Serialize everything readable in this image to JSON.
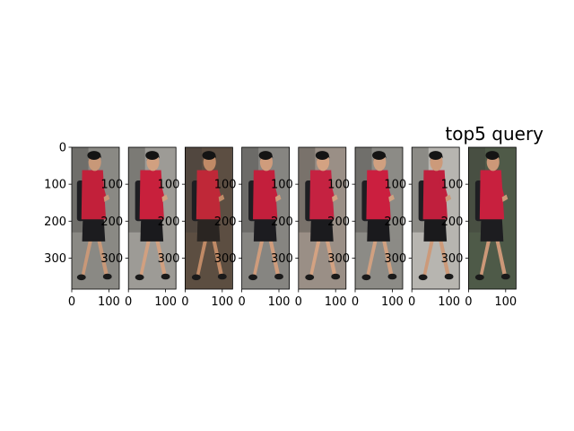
{
  "chart_data": {
    "type": "image_grid",
    "title": "top5 query",
    "panels": [
      {
        "xticks": [
          0,
          100
        ],
        "yticks": [
          0,
          100,
          200,
          300
        ],
        "xlim": [
          0,
          128
        ],
        "ylim": [
          384,
          0
        ],
        "pose": "walk-left-dark",
        "colors": {
          "bg": "#8a8984",
          "shirt": "#c2203a",
          "shorts": "#1c1c1f",
          "skin": "#c89878"
        }
      },
      {
        "xticks": [
          0,
          100
        ],
        "yticks": [
          100,
          200,
          300
        ],
        "xlim": [
          0,
          128
        ],
        "ylim": [
          384,
          0
        ],
        "pose": "walk-right",
        "colors": {
          "bg": "#9d9b96",
          "shirt": "#c8203c",
          "shorts": "#1a1a1d",
          "skin": "#d1a080"
        }
      },
      {
        "xticks": [
          0,
          100
        ],
        "yticks": [
          100,
          200,
          300
        ],
        "xlim": [
          0,
          128
        ],
        "ylim": [
          384,
          0
        ],
        "pose": "blur",
        "colors": {
          "bg": "#5c4e42",
          "shirt": "#bf2838",
          "shorts": "#2a2522",
          "skin": "#c08a66"
        }
      },
      {
        "xticks": [
          0,
          100
        ],
        "yticks": [
          100,
          200,
          300
        ],
        "xlim": [
          0,
          128
        ],
        "ylim": [
          384,
          0
        ],
        "pose": "walk-right",
        "colors": {
          "bg": "#868581",
          "shirt": "#c31f3c",
          "shorts": "#1c1c20",
          "skin": "#cf9c7c"
        }
      },
      {
        "xticks": [
          0,
          100
        ],
        "yticks": [
          100,
          200,
          300
        ],
        "xlim": [
          0,
          128
        ],
        "ylim": [
          384,
          0
        ],
        "pose": "front",
        "colors": {
          "bg": "#9a8f86",
          "shirt": "#c52241",
          "shorts": "#1b1b1e",
          "skin": "#d3a282"
        }
      },
      {
        "xticks": [
          0,
          100
        ],
        "yticks": [
          100,
          200,
          300
        ],
        "xlim": [
          0,
          128
        ],
        "ylim": [
          384,
          0
        ],
        "pose": "walk-right",
        "colors": {
          "bg": "#8c8b86",
          "shirt": "#cb1f3f",
          "shorts": "#1a1a1d",
          "skin": "#d0a080"
        }
      },
      {
        "xticks": [
          0,
          100
        ],
        "yticks": [
          100,
          200,
          300
        ],
        "xlim": [
          0,
          128
        ],
        "ylim": [
          384,
          0
        ],
        "pose": "walk-right-wall",
        "colors": {
          "bg": "#b7b5b0",
          "shirt": "#c01f3d",
          "shorts": "#1a1a1c",
          "skin": "#cc9a7a"
        }
      },
      {
        "xticks": [
          0,
          100
        ],
        "yticks": [
          100,
          200,
          300
        ],
        "xlim": [
          0,
          128
        ],
        "ylim": [
          384,
          0
        ],
        "pose": "walk-right-trees",
        "colors": {
          "bg": "#4f5a48",
          "shirt": "#c8203e",
          "shorts": "#1d1d20",
          "skin": "#cc9878"
        }
      }
    ]
  }
}
